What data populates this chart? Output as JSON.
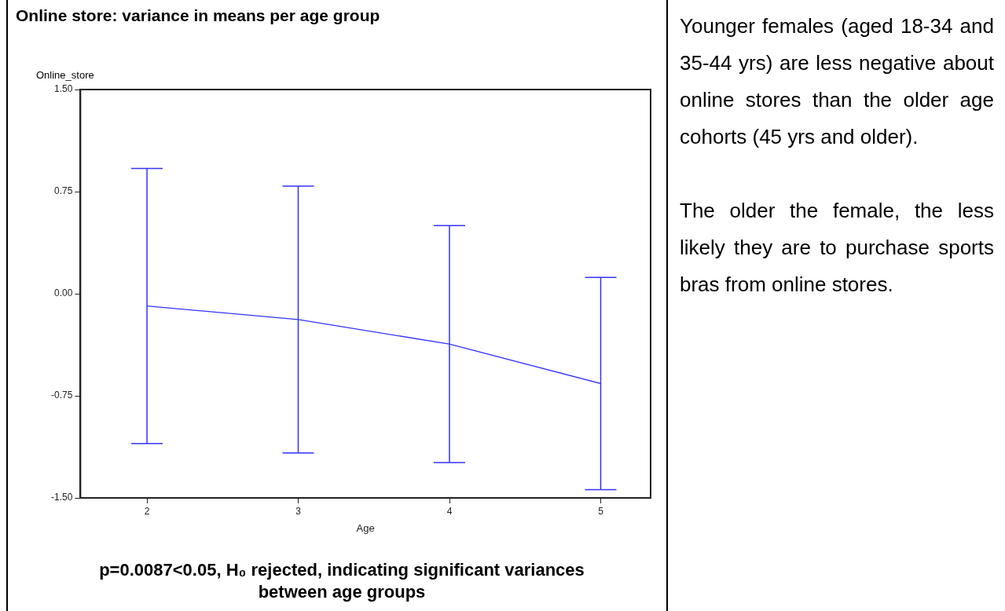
{
  "chart_data": {
    "type": "line",
    "title": "Online store: variance in means per age group",
    "xlabel": "Age",
    "ylabel": "Online_store",
    "x": [
      2,
      3,
      4,
      5
    ],
    "series": [
      {
        "color": "#3333ff",
        "values": [
          -0.09,
          -0.19,
          -0.37,
          -0.66
        ],
        "errors": [
          1.01,
          0.98,
          0.87,
          0.78
        ]
      }
    ],
    "xlim": [
      1.56,
      5.33
    ],
    "xticks": [
      2,
      3,
      4,
      5
    ],
    "ylim": [
      -1.5,
      1.5
    ],
    "yticks": [
      {
        "value": -1.5,
        "label": "-1.50"
      },
      {
        "value": -0.75,
        "label": "-0.75"
      },
      {
        "value": 0,
        "label": "0.00"
      },
      {
        "value": 0.75,
        "label": "0.75"
      },
      {
        "value": 1.5,
        "label": "1.50"
      }
    ],
    "grid": false,
    "legend": false,
    "marker": "none",
    "line_style": "solid",
    "annotations": [
      "p=0.0087<0.05, H₀ rejected, indicating significant variances between age groups",
      "Younger females (aged 18-34 and 35-44 yrs) are less negative about online stores than the older age cohorts (45 yrs and older).",
      "The older the female, the less likely they are to purchase sports bras from online stores."
    ]
  }
}
